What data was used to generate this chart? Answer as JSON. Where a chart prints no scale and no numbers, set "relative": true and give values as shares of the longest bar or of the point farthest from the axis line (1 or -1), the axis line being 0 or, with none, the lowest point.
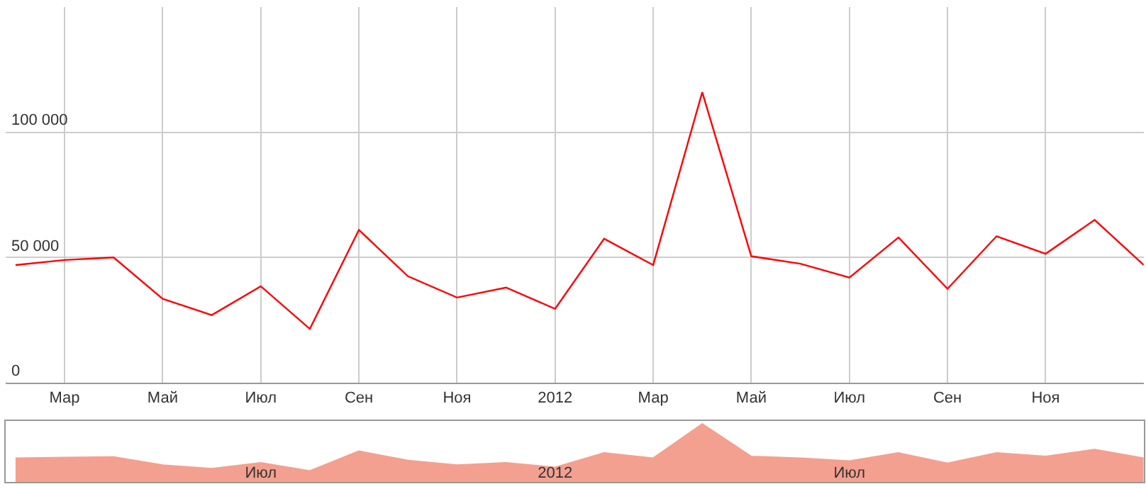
{
  "chart_data": [
    {
      "type": "line",
      "categories": [
        null,
        "Мар",
        null,
        "Май",
        null,
        "Июл",
        null,
        "Сен",
        null,
        "Ноя",
        null,
        "2012",
        null,
        "Мар",
        null,
        "Май",
        null,
        "Июл",
        null,
        "Сен",
        null,
        "Ноя",
        null,
        null
      ],
      "series": [
        {
          "color": "#ff0000",
          "values": [
            47000,
            49000,
            50000,
            33500,
            27000,
            38500,
            21500,
            61000,
            42500,
            34000,
            38000,
            29500,
            57500,
            47000,
            116000,
            50500,
            47500,
            42000,
            58000,
            37500,
            58500,
            51500,
            65000,
            47000
          ]
        }
      ],
      "ylim": [
        0,
        150000
      ],
      "yticks": [
        0,
        {
          "value": 50000,
          "label": "50 000"
        },
        {
          "value": 100000,
          "label": "100 000"
        }
      ],
      "grid": true,
      "marker": "none",
      "line_style": "solid"
    },
    {
      "type": "area",
      "relative": true,
      "categories": [
        null,
        null,
        null,
        null,
        null,
        "Июл",
        null,
        null,
        null,
        null,
        null,
        "2012",
        null,
        null,
        null,
        null,
        null,
        "Июл",
        null,
        null,
        null,
        null,
        null,
        null
      ],
      "series": [
        {
          "color": "#f4a090",
          "values": [
            0.41,
            0.42,
            0.43,
            0.29,
            0.23,
            0.33,
            0.19,
            0.53,
            0.37,
            0.29,
            0.33,
            0.25,
            0.5,
            0.41,
            1,
            0.44,
            0.41,
            0.36,
            0.5,
            0.32,
            0.5,
            0.44,
            0.56,
            0.41
          ]
        }
      ],
      "grid": false
    }
  ]
}
